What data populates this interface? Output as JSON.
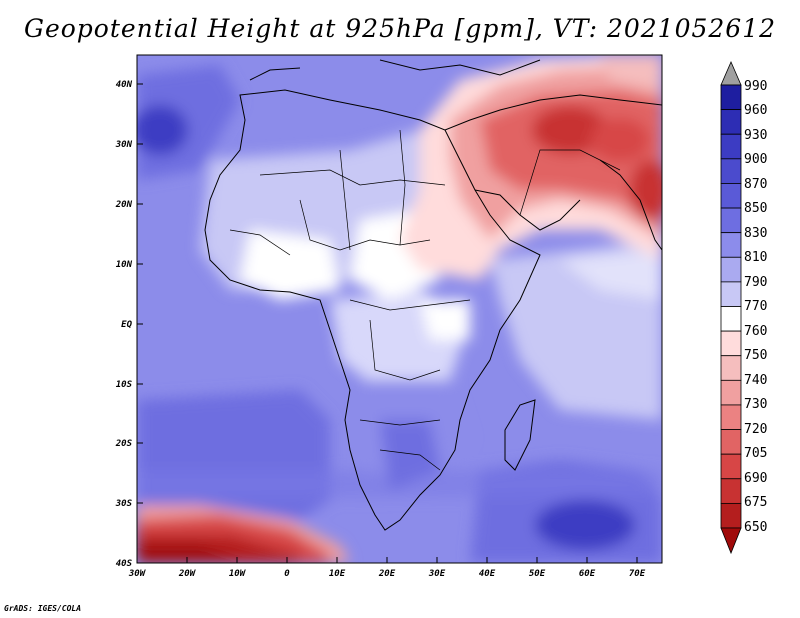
{
  "title": "Geopotential Height at 925hPa [gpm], VT: 2021052612",
  "credit": "GrADS: IGES/COLA",
  "lat_ticks": [
    "40N",
    "30N",
    "20N",
    "10N",
    "EQ",
    "10S",
    "20S",
    "30S",
    "40S"
  ],
  "lon_ticks": [
    "30W",
    "20W",
    "10W",
    "0",
    "10E",
    "20E",
    "30E",
    "40E",
    "50E",
    "60E",
    "70E"
  ],
  "colorbar": {
    "labels": [
      "990",
      "960",
      "930",
      "900",
      "870",
      "850",
      "830",
      "810",
      "790",
      "770",
      "760",
      "750",
      "740",
      "730",
      "720",
      "705",
      "690",
      "675",
      "650"
    ],
    "colors": [
      "#a0a0a0",
      "#1e1ea0",
      "#2d2db4",
      "#3c3cc3",
      "#4b4bcd",
      "#5a5ad7",
      "#6e6ee1",
      "#8c8ceb",
      "#aaaaf0",
      "#c8c8f5",
      "#ffffff",
      "#ffdcdc",
      "#f5bebe",
      "#f0a0a0",
      "#eb8282",
      "#e16464",
      "#d74646",
      "#c83232",
      "#b41e1e",
      "#a00a0a"
    ]
  }
}
